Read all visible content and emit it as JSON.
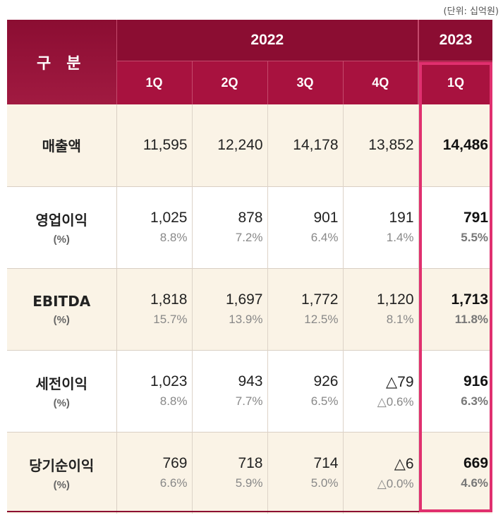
{
  "unit_note": "(단위: 십억원)",
  "header": {
    "corner": "구 분",
    "year_2022": "2022",
    "year_2023": "2023",
    "quarters": [
      "1Q",
      "2Q",
      "3Q",
      "4Q",
      "1Q"
    ]
  },
  "rows": [
    {
      "label": "매출액",
      "pct_label": "",
      "values": [
        "11,595",
        "12,240",
        "14,178",
        "13,852",
        "14,486"
      ],
      "pcts": [
        "",
        "",
        "",
        "",
        ""
      ]
    },
    {
      "label": "영업이익",
      "pct_label": "(%)",
      "values": [
        "1,025",
        "878",
        "901",
        "191",
        "791"
      ],
      "pcts": [
        "8.8%",
        "7.2%",
        "6.4%",
        "1.4%",
        "5.5%"
      ]
    },
    {
      "label": "EBITDA",
      "pct_label": "(%)",
      "values": [
        "1,818",
        "1,697",
        "1,772",
        "1,120",
        "1,713"
      ],
      "pcts": [
        "15.7%",
        "13.9%",
        "12.5%",
        "8.1%",
        "11.8%"
      ]
    },
    {
      "label": "세전이익",
      "pct_label": "(%)",
      "values": [
        "1,023",
        "943",
        "926",
        "△79",
        "916"
      ],
      "pcts": [
        "8.8%",
        "7.7%",
        "6.5%",
        "△0.6%",
        "6.3%"
      ]
    },
    {
      "label": "당기순이익",
      "pct_label": "(%)",
      "values": [
        "769",
        "718",
        "714",
        "△6",
        "669"
      ],
      "pcts": [
        "6.6%",
        "5.9%",
        "5.0%",
        "△0.0%",
        "4.6%"
      ]
    }
  ],
  "colors": {
    "header_dark": "#8b0d32",
    "header_light": "#a8123f",
    "row_alt": "#faf3e6",
    "highlight": "#e0306f"
  }
}
